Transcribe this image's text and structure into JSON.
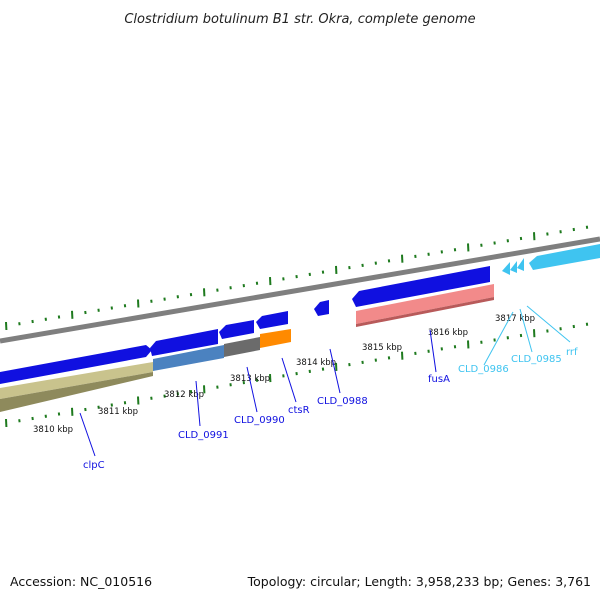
{
  "title": "Clostridium botulinum B1 str. Okra, complete genome",
  "footer": {
    "accession": "Accession: NC_010516",
    "topology": "Topology: circular; Length: 3,958,233 bp; Genes: 3,761"
  },
  "colors": {
    "dark_blue": "#1010e0",
    "light_blue": "#3fc4f0",
    "backbone": "#8a8a8a",
    "gene_olive": "#c9c38d",
    "gene_steel": "#4b82c0",
    "gene_gray": "#6b6b6b",
    "gene_orange": "#ff8a00",
    "gene_pink": "#f28a8a",
    "tick_green": "#1e7a1e"
  },
  "kbp_labels": [
    "3810 kbp",
    "3811 kbp",
    "3812 kbp",
    "3813 kbp",
    "3814 kbp",
    "3815 kbp",
    "3816 kbp",
    "3817 kbp"
  ],
  "genes": [
    {
      "name": "clpC"
    },
    {
      "name": "CLD_0991"
    },
    {
      "name": "CLD_0990"
    },
    {
      "name": "ctsR"
    },
    {
      "name": "CLD_0988"
    },
    {
      "name": "fusA"
    },
    {
      "name": "CLD_0986"
    },
    {
      "name": "CLD_0985"
    },
    {
      "name": "rrf"
    }
  ]
}
